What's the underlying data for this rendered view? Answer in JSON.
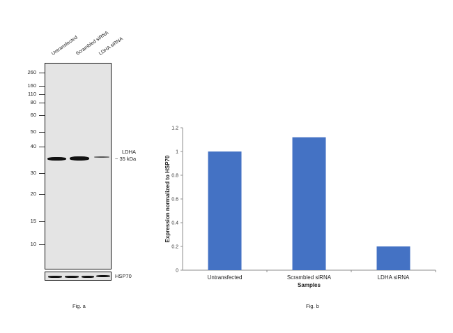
{
  "figure_a": {
    "lane_labels": [
      "Untransfected",
      "Scrambled siRNA",
      "LDHA siRNA"
    ],
    "mw_markers": [
      "260",
      "160",
      "110",
      "80",
      "60",
      "50",
      "40",
      "30",
      "20",
      "15",
      "10"
    ],
    "target_label": "LDHA",
    "target_size": "~ 35 kDa",
    "control_label": "HSP70",
    "caption": "Fig. a",
    "band_intensity": [
      1.0,
      1.0,
      0.25
    ]
  },
  "chart_data": {
    "type": "bar",
    "categories": [
      "Untransfected",
      "Scrambled siRNA",
      "LDHA siRNA"
    ],
    "values": [
      1.0,
      1.12,
      0.2
    ],
    "xlabel": "Samples",
    "ylabel": "Expression normalized to HSP70",
    "ylim": [
      0,
      1.2
    ],
    "yticks": [
      "0",
      "0.2",
      "0.4",
      "0.6",
      "0.8",
      "1",
      "1.2"
    ],
    "grid": false,
    "bar_color": "#4472c4",
    "caption": "Fig. b"
  }
}
